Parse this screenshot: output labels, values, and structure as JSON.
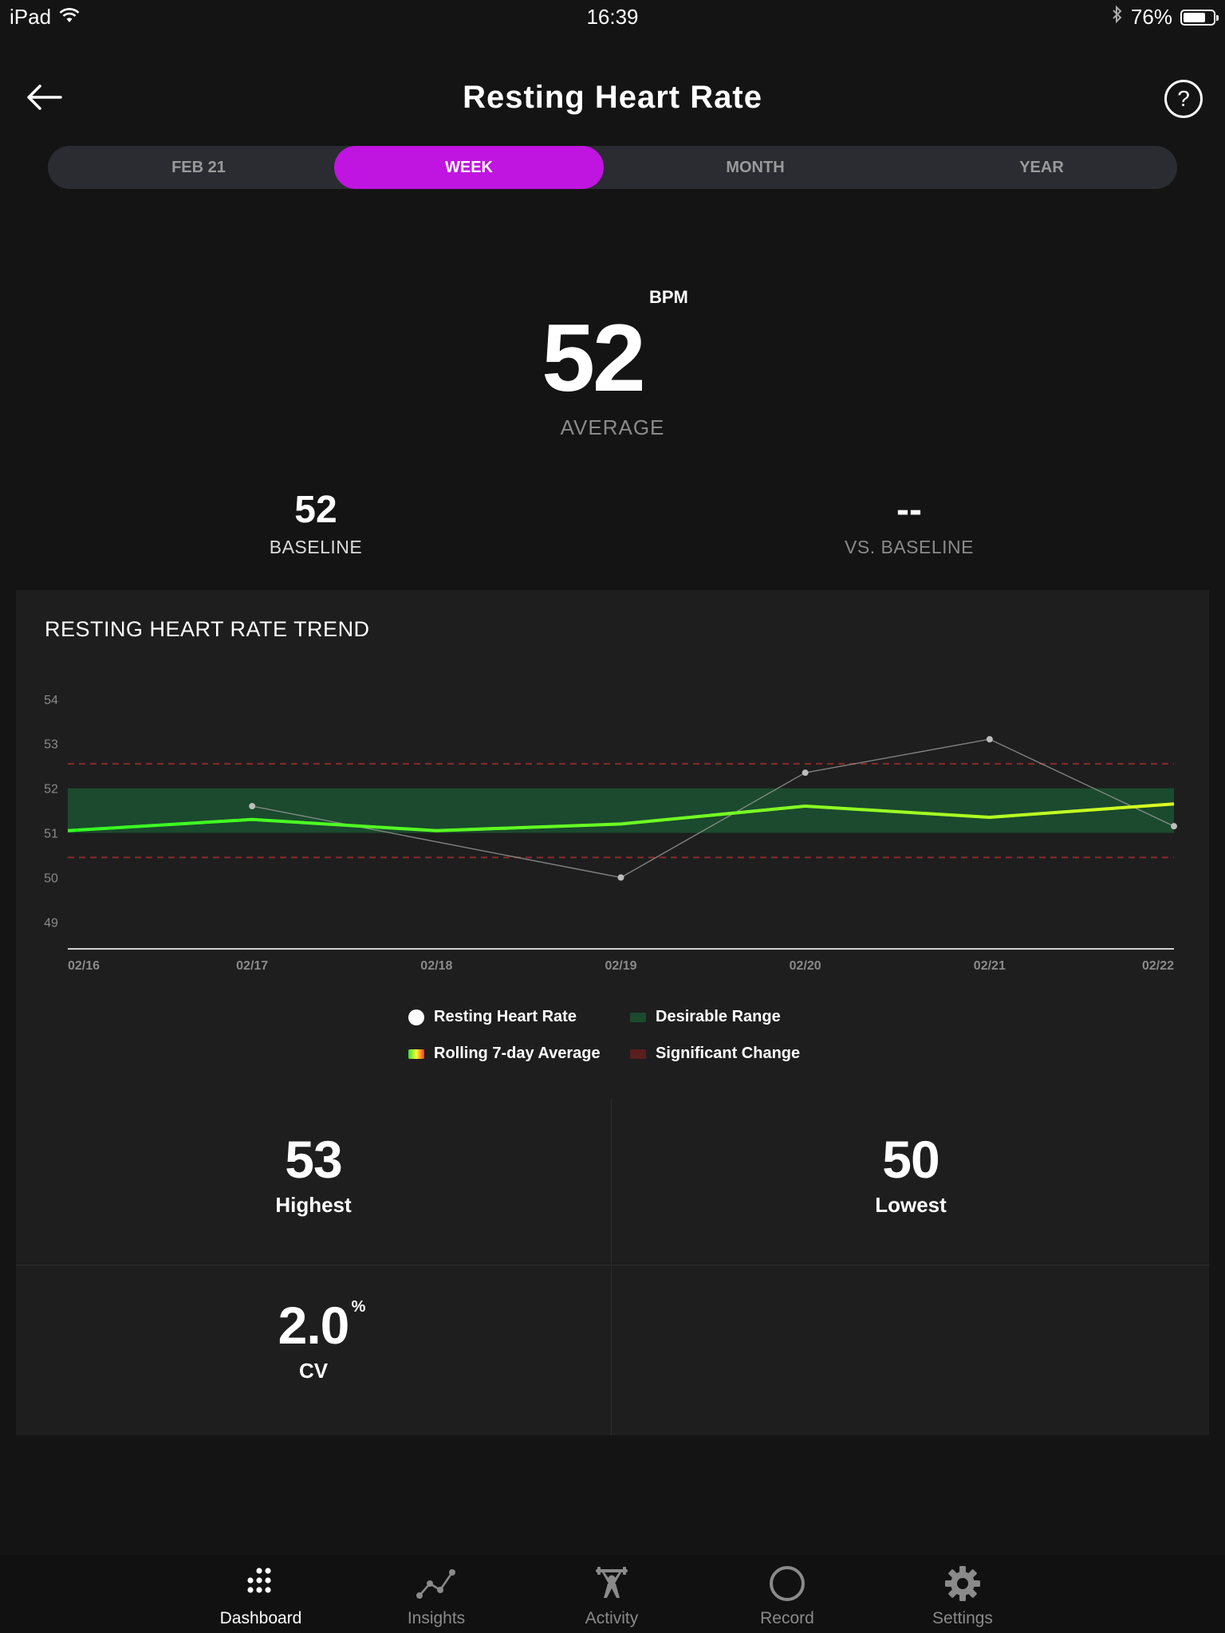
{
  "status_bar": {
    "device": "iPad",
    "time": "16:39",
    "battery_text": "76%",
    "battery_level": 0.76
  },
  "header": {
    "title": "Resting Heart Rate",
    "help_label": "?"
  },
  "tabs": [
    {
      "label": "FEB 21",
      "active": false
    },
    {
      "label": "WEEK",
      "active": true
    },
    {
      "label": "MONTH",
      "active": false
    },
    {
      "label": "YEAR",
      "active": false
    }
  ],
  "summary": {
    "average_value": "52",
    "average_unit": "BPM",
    "average_label": "AVERAGE",
    "baseline_value": "52",
    "baseline_label": "BASELINE",
    "vs_baseline_value": "--",
    "vs_baseline_label": "VS. BASELINE"
  },
  "trend": {
    "title": "RESTING HEART RATE TREND",
    "legend": [
      {
        "label": "Resting Heart Rate"
      },
      {
        "label": "Desirable Range"
      },
      {
        "label": "Rolling 7-day Average"
      },
      {
        "label": "Significant Change"
      }
    ]
  },
  "chart_data": {
    "type": "line",
    "x": [
      "02/16",
      "02/17",
      "02/18",
      "02/19",
      "02/20",
      "02/21",
      "02/22"
    ],
    "ylim": [
      48.4,
      54.3
    ],
    "yticks": [
      54,
      53,
      52,
      51,
      50,
      49
    ],
    "series": [
      {
        "name": "Resting Heart Rate",
        "values": [
          null,
          51.6,
          null,
          50,
          52.35,
          53.1,
          51.15
        ],
        "color": "#9a9a9a"
      },
      {
        "name": "Rolling 7-day Average",
        "values": [
          51.05,
          51.3,
          51.05,
          51.2,
          51.6,
          51.35,
          51.65
        ],
        "color": "#66ff33"
      }
    ],
    "desirable_range": [
      51,
      52
    ],
    "significant_change": [
      50.45,
      52.55
    ],
    "colors": {
      "range": "#1b4a2e",
      "significant": "#8a2a2a",
      "axis": "#cfcfcf"
    }
  },
  "metrics": {
    "highest_value": "53",
    "highest_label": "Highest",
    "lowest_value": "50",
    "lowest_label": "Lowest",
    "cv_value": "2.0",
    "cv_unit": "%",
    "cv_label": "CV"
  },
  "tabbar": [
    {
      "label": "Dashboard",
      "icon": "dots-grid-icon",
      "active": true
    },
    {
      "label": "Insights",
      "icon": "insights-icon",
      "active": false
    },
    {
      "label": "Activity",
      "icon": "weightlifter-icon",
      "active": false
    },
    {
      "label": "Record",
      "icon": "record-circle-icon",
      "active": false
    },
    {
      "label": "Settings",
      "icon": "gear-icon",
      "active": false
    }
  ],
  "colors": {
    "accent": "#c014e0",
    "background": "#141414",
    "card": "#1e1e1e"
  }
}
